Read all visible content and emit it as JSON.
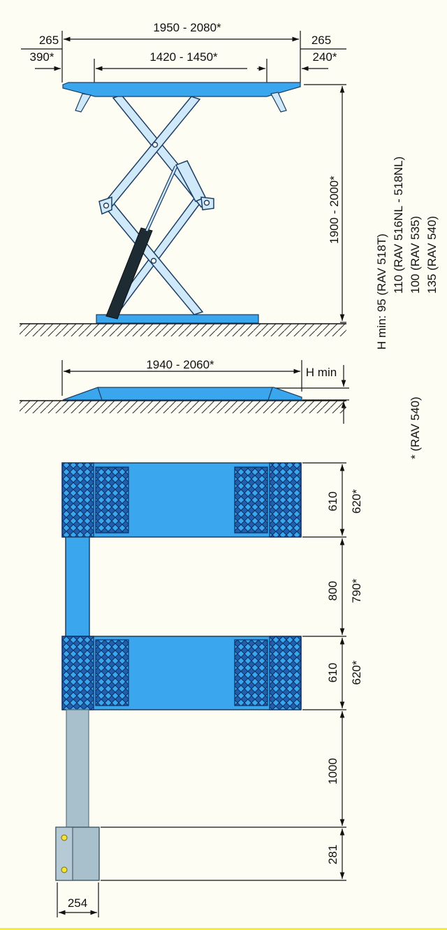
{
  "side_view": {
    "overall_length": "1950 - 2080*",
    "left_overhang": [
      "265",
      "390*"
    ],
    "platform_length": "1420 - 1450*",
    "right_overhang": [
      "265",
      "240*"
    ],
    "max_height": "1900 - 2000*"
  },
  "lowered_view": {
    "length": "1940 - 2060*",
    "h_min_label": "H min"
  },
  "h_min_notes": [
    "H min:  95 (RAV 518T)",
    "110 (RAV 516NL - 518NL)",
    "100 (RAV 535)",
    "135 (RAV 540)"
  ],
  "asterisk_note": "* (RAV 540)",
  "plan_view": {
    "platform_1_width": [
      "610",
      "620*"
    ],
    "gap": [
      "800",
      "790*"
    ],
    "platform_2_width": [
      "610",
      "620*"
    ],
    "hose_length": "1000",
    "control_unit_depth": "281",
    "control_unit_width": "254"
  },
  "colors": {
    "platform_blue": "#3aa6ee",
    "structure_light": "#cfe9fa",
    "grid_dark": "#1f5fae",
    "hose_grey": "#a8c0cc",
    "cylinder_dark": "#1e2b33",
    "background": "#fefdf4"
  }
}
